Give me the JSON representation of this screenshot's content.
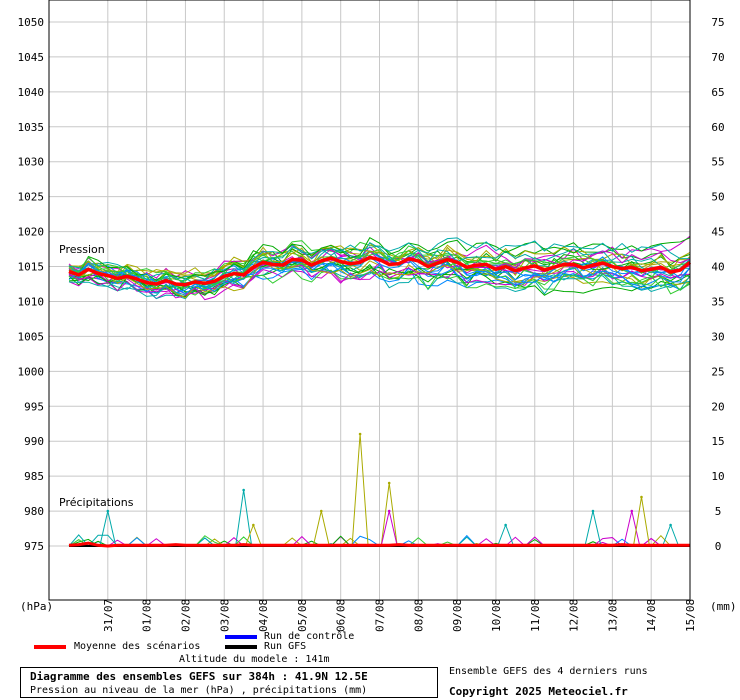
{
  "chart_data": {
    "type": "line",
    "title": "Diagramme des ensembles GEFS sur 384h : 41.9N 12.5E",
    "subtitle": "Pression au niveau de la mer (hPa) , précipitations (mm)",
    "left_unit": "(hPa)",
    "right_unit": "(mm)",
    "pressure_label": "Pression",
    "precip_label": "Précipitations",
    "y_left_ticks": [
      975,
      980,
      985,
      990,
      995,
      1000,
      1005,
      1010,
      1015,
      1020,
      1025,
      1030,
      1035,
      1040,
      1045,
      1050
    ],
    "y_left_range": [
      970,
      1052
    ],
    "y_right_ticks": [
      0,
      5,
      10,
      15,
      20,
      25,
      30,
      35,
      40,
      45,
      50,
      55,
      60,
      65,
      70,
      75
    ],
    "x_ticks": [
      "31/07",
      "01/08",
      "02/08",
      "03/08",
      "04/08",
      "05/08",
      "06/08",
      "07/08",
      "08/08",
      "09/08",
      "10/08",
      "11/08",
      "12/08",
      "13/08",
      "14/08",
      "15/08"
    ],
    "x_range_hours": [
      0,
      384
    ],
    "step_hours": 6,
    "series": [
      {
        "name": "Moyenne des scénarios",
        "color": "#ff0000",
        "kind": "pressure_mean",
        "values": [
          1014.3,
          1013.8,
          1014.6,
          1014.0,
          1013.7,
          1013.3,
          1013.6,
          1013.2,
          1012.7,
          1012.5,
          1013.0,
          1012.5,
          1012.4,
          1012.8,
          1012.6,
          1012.9,
          1013.6,
          1014.0,
          1013.8,
          1014.9,
          1015.6,
          1015.3,
          1015.2,
          1016.0,
          1015.9,
          1015.2,
          1015.8,
          1016.2,
          1015.7,
          1015.4,
          1015.6,
          1016.3,
          1016.0,
          1015.3,
          1015.4,
          1016.1,
          1015.8,
          1015.0,
          1015.5,
          1016.0,
          1015.6,
          1014.9,
          1015.2,
          1015.3,
          1014.6,
          1015.0,
          1014.4,
          1014.8,
          1015.1,
          1014.5,
          1014.9,
          1015.3,
          1015.3,
          1014.8,
          1015.2,
          1015.5,
          1015.0,
          1014.7,
          1014.9,
          1014.4,
          1014.6,
          1014.9,
          1014.2,
          1014.5,
          1015.6
        ]
      },
      {
        "name": "Moyenne des scénarios (précipitations)",
        "color": "#ff0000",
        "kind": "precip_mean",
        "values": [
          0.1,
          0.2,
          0.4,
          0.1,
          0.0,
          0.1,
          0.1,
          0.1,
          0.1,
          0.1,
          0.1,
          0.2,
          0.1,
          0.1,
          0.1,
          0.1,
          0.1,
          0.1,
          0.2,
          0.1,
          0.1,
          0.1,
          0.1,
          0.1,
          0.1,
          0.1,
          0.1,
          0.1,
          0.1,
          0.1,
          0.1,
          0.1,
          0.1,
          0.1,
          0.2,
          0.1,
          0.1,
          0.1,
          0.1,
          0.1,
          0.1,
          0.1,
          0.1,
          0.1,
          0.1,
          0.1,
          0.1,
          0.1,
          0.1,
          0.1,
          0.1,
          0.1,
          0.1,
          0.1,
          0.1,
          0.1,
          0.1,
          0.2,
          0.1,
          0.1,
          0.1,
          0.1,
          0.1,
          0.1,
          0.1
        ]
      },
      {
        "name": "Run de contrôle",
        "color": "#0000ff",
        "kind": "legend_only",
        "values": []
      },
      {
        "name": "Run GFS",
        "color": "#000000",
        "kind": "precip_gfs",
        "values": [
          0.0,
          0.0,
          0.0,
          0.0,
          0.0,
          0.0,
          0.0,
          0.0,
          0.0,
          0.0,
          0.0,
          0.0,
          0.0,
          0.0,
          0.0,
          0.0,
          0.0,
          0.0,
          0.0,
          0.0,
          0.0,
          0.0,
          0.0,
          0.0,
          0.0,
          0.0,
          0.0,
          0.0,
          0.0,
          0.0,
          0.0,
          0.0,
          0.0,
          0.0,
          0.0,
          0.0,
          0.0,
          0.0,
          0.0,
          0.0,
          0.0,
          0.0,
          0.0,
          0.0,
          0.0,
          0.0,
          0.0,
          0.0,
          0.0,
          0.0,
          0.0,
          0.0,
          0.0,
          0.0,
          0.0,
          0.0,
          0.0,
          0.0,
          0.0,
          0.0,
          0.0,
          0.0,
          0.0,
          0.0,
          0.0
        ]
      }
    ],
    "ensemble_colors": [
      "#00aa00",
      "#cc00cc",
      "#aaaa00",
      "#0088ff",
      "#00aaaa",
      "#33cc33"
    ],
    "ensemble_count": 30,
    "precip_spikes": [
      {
        "h": 24,
        "mm": 5,
        "color": "#00aaaa"
      },
      {
        "h": 108,
        "mm": 8,
        "color": "#00aaaa"
      },
      {
        "h": 114,
        "mm": 3,
        "color": "#aaaa00"
      },
      {
        "h": 156,
        "mm": 5,
        "color": "#aaaa00"
      },
      {
        "h": 180,
        "mm": 16,
        "color": "#aaaa00"
      },
      {
        "h": 198,
        "mm": 9,
        "color": "#aaaa00"
      },
      {
        "h": 198,
        "mm": 5,
        "color": "#cc00cc"
      },
      {
        "h": 270,
        "mm": 3,
        "color": "#00aaaa"
      },
      {
        "h": 324,
        "mm": 5,
        "color": "#00aaaa"
      },
      {
        "h": 348,
        "mm": 5,
        "color": "#cc00cc"
      },
      {
        "h": 354,
        "mm": 7,
        "color": "#aaaa00"
      },
      {
        "h": 372,
        "mm": 3,
        "color": "#00aaaa"
      }
    ]
  },
  "legend": {
    "mean_label": "Moyenne des scénarios",
    "control_label": "Run de contrôle",
    "gfs_label": "Run GFS",
    "mean_color": "#ff0000",
    "control_color": "#0000ff",
    "gfs_color": "#000000"
  },
  "footer": {
    "altitude": "Altitude du modele : 141m",
    "title": "Diagramme des ensembles GEFS sur 384h : 41.9N 12.5E",
    "subtitle": "Pression au niveau de la mer (hPa) , précipitations (mm)",
    "runs_note": "Ensemble GEFS des 4 derniers runs",
    "copyright": "Copyright 2025 Meteociel.fr"
  }
}
